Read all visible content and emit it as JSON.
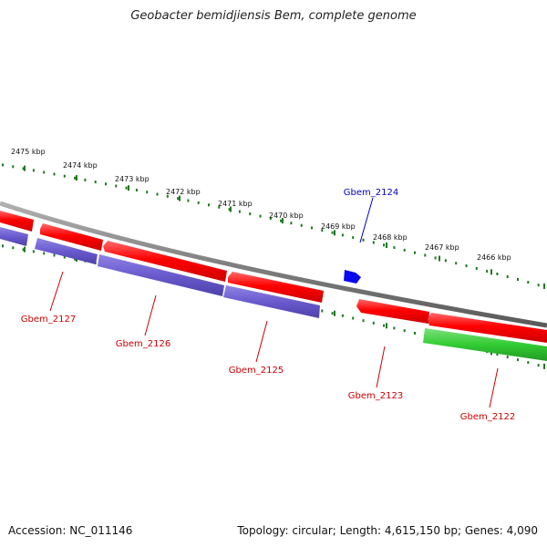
{
  "header": {
    "title": "Geobacter bemidjiensis Bem, complete genome"
  },
  "footer": {
    "accession": "Accession: NC_011146",
    "summary": "Topology: circular; Length: 4,615,150 bp; Genes: 4,090"
  },
  "ticks": [
    {
      "label": "2475 kbp"
    },
    {
      "label": "2474 kbp"
    },
    {
      "label": "2473 kbp"
    },
    {
      "label": "2472 kbp"
    },
    {
      "label": "2471 kbp"
    },
    {
      "label": "2470 kbp"
    },
    {
      "label": "2469 kbp"
    },
    {
      "label": "2468 kbp"
    },
    {
      "label": "2467 kbp"
    },
    {
      "label": "2466 kbp"
    }
  ],
  "genes": [
    {
      "name": "Gbem_2127"
    },
    {
      "name": "Gbem_2126"
    },
    {
      "name": "Gbem_2125"
    },
    {
      "name": "Gbem_2124"
    },
    {
      "name": "Gbem_2123"
    },
    {
      "name": "Gbem_2122"
    }
  ],
  "colors": {
    "backbone": "#808080",
    "cds": "#ff0000",
    "gene_purple": "#6a5acd",
    "gene_green": "#33cc33",
    "gene_blue": "#0000ee",
    "ticks": "#1e7a1e",
    "label_red": "#cc0000",
    "label_blue": "#0000cc"
  }
}
